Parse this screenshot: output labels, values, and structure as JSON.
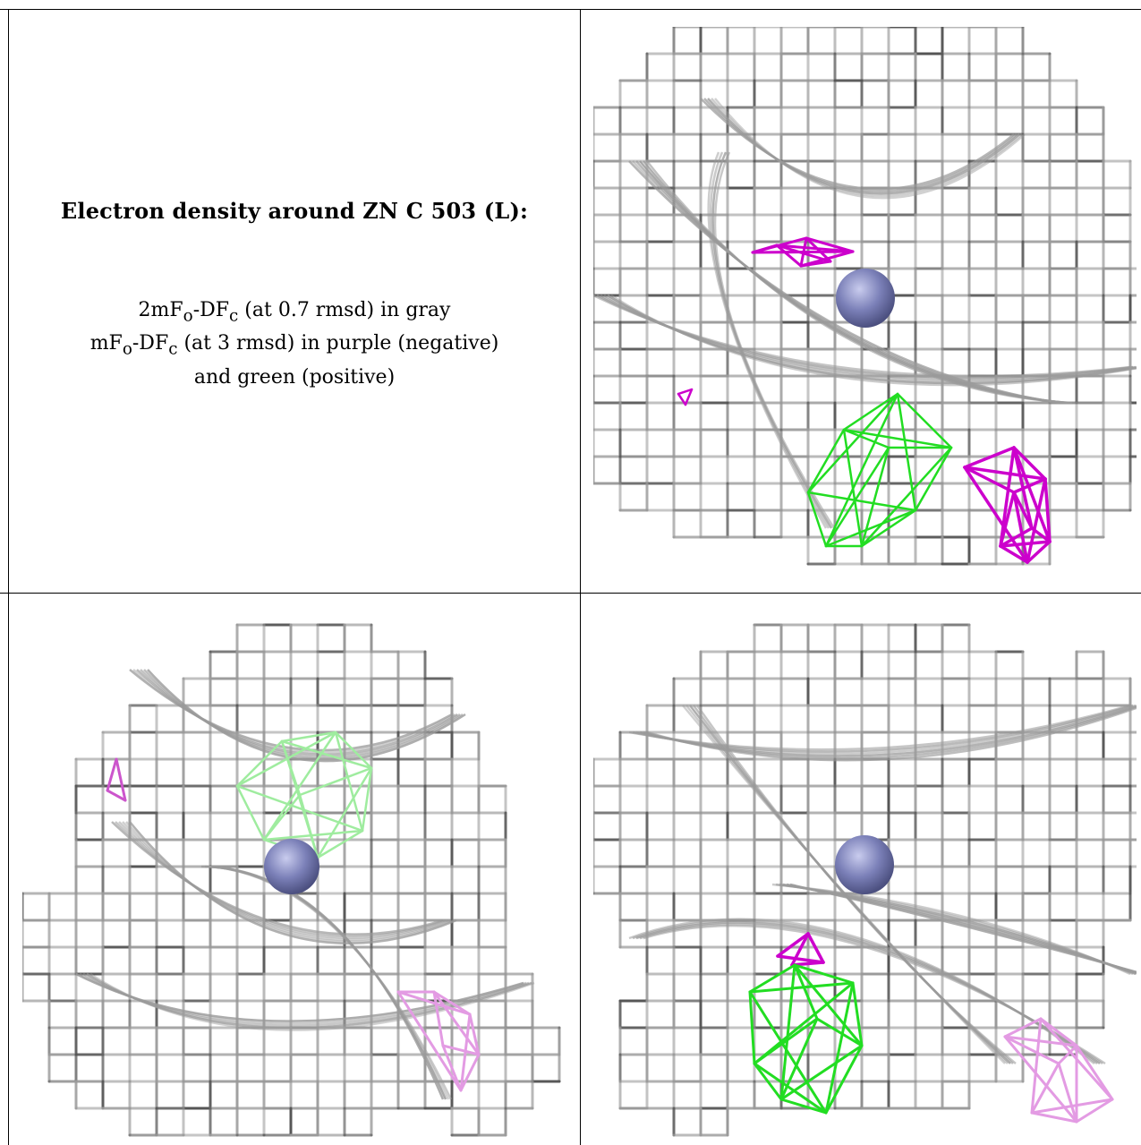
{
  "caption": {
    "title": "Electron density around ZN C 503 (L):",
    "map1": "2mF",
    "map1_sub_o": "o",
    "map1_mid": "-DF",
    "map1_sub_c": "c",
    "map1_tail": " (at 0.7 rmsd) in gray",
    "map2": "mF",
    "map2_sub_o": "o",
    "map2_mid": "-DF",
    "map2_sub_c": "c",
    "map2_tail": " (at 3 rmsd) in purple (negative)",
    "map2_line2": "and green (positive)"
  },
  "colors": {
    "density_gray": "#9a9a9a",
    "density_dark": "#555555",
    "negative_purple": "#cc00cc",
    "negative_light": "#e39be3",
    "positive_green": "#22dd22",
    "positive_light": "#9fec9f",
    "zinc_atom": "#7b80b8"
  },
  "panels": [
    {
      "name": "top-right-view",
      "atom": "zinc-sphere"
    },
    {
      "name": "bottom-left-view",
      "atom": "zinc-sphere"
    },
    {
      "name": "bottom-right-view",
      "atom": "zinc-sphere"
    }
  ]
}
